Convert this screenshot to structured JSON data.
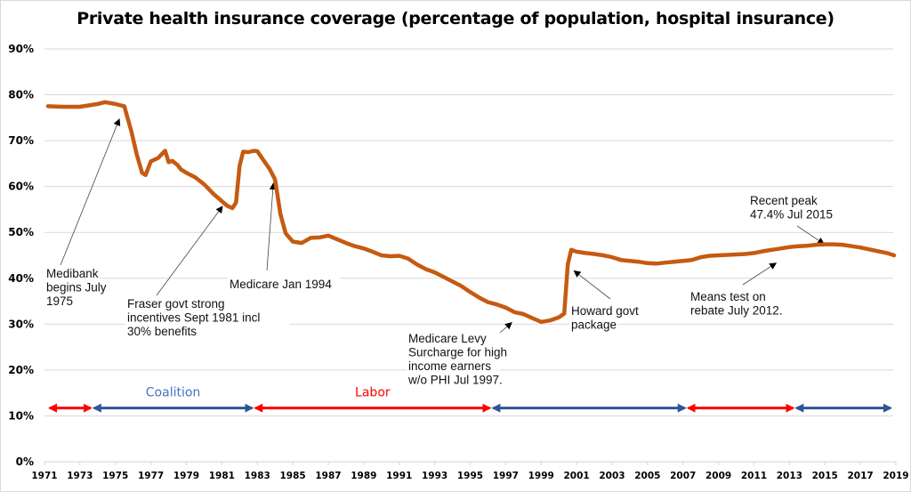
{
  "chart_data": {
    "type": "line",
    "title": "Private health insurance coverage (percentage of population, hospital insurance)",
    "xlabel": "",
    "ylabel": "",
    "xlim": [
      1971,
      2019
    ],
    "ylim": [
      0,
      90
    ],
    "grid": true,
    "legend": "none",
    "x_ticks": [
      "1971",
      "1973",
      "1975",
      "1977",
      "1979",
      "1981",
      "1983",
      "1985",
      "1987",
      "1989",
      "1991",
      "1993",
      "1995",
      "1997",
      "1999",
      "2001",
      "2003",
      "2005",
      "2007",
      "2009",
      "2011",
      "2013",
      "2015",
      "2017",
      "2019"
    ],
    "y_ticks": [
      "0%",
      "10%",
      "20%",
      "30%",
      "40%",
      "50%",
      "60%",
      "70%",
      "80%",
      "90%"
    ],
    "line_color": "#C55A11",
    "series": [
      {
        "name": "Private health insurance coverage (%)",
        "x": [
          1971.2,
          1972.0,
          1973.0,
          1974.0,
          1974.4,
          1975.0,
          1975.5,
          1975.9,
          1976.2,
          1976.5,
          1976.7,
          1977.0,
          1977.4,
          1977.8,
          1978.0,
          1978.2,
          1978.5,
          1978.7,
          1979.0,
          1979.5,
          1980.0,
          1980.5,
          1981.0,
          1981.3,
          1981.6,
          1981.8,
          1982.0,
          1982.2,
          1982.5,
          1982.8,
          1983.0,
          1983.3,
          1983.7,
          1984.0,
          1984.3,
          1984.6,
          1985.0,
          1985.5,
          1986.0,
          1986.5,
          1987.0,
          1987.5,
          1988.0,
          1988.5,
          1989.0,
          1989.5,
          1990.0,
          1990.5,
          1991.0,
          1991.5,
          1992.0,
          1992.5,
          1993.0,
          1993.5,
          1994.0,
          1994.5,
          1995.0,
          1995.5,
          1996.0,
          1996.5,
          1997.0,
          1997.5,
          1998.0,
          1998.5,
          1999.0,
          1999.5,
          2000.0,
          2000.3,
          2000.5,
          2000.7,
          2001.0,
          2001.5,
          2002.0,
          2002.5,
          2003.0,
          2003.5,
          2004.0,
          2004.5,
          2005.0,
          2005.5,
          2006.0,
          2006.5,
          2007.0,
          2007.5,
          2008.0,
          2008.5,
          2009.0,
          2009.5,
          2010.0,
          2010.5,
          2011.0,
          2011.5,
          2012.0,
          2012.5,
          2013.0,
          2013.5,
          2014.0,
          2014.5,
          2015.0,
          2015.5,
          2016.0,
          2016.5,
          2017.0,
          2017.5,
          2018.0,
          2018.5,
          2018.9
        ],
        "values": [
          77.5,
          77.4,
          77.4,
          78.0,
          78.4,
          78.0,
          77.5,
          72.0,
          67.0,
          63.0,
          62.5,
          65.5,
          66.2,
          67.8,
          65.3,
          65.6,
          64.7,
          63.7,
          63.0,
          62.0,
          60.5,
          58.5,
          56.8,
          55.8,
          55.3,
          56.5,
          64.5,
          67.6,
          67.5,
          67.8,
          67.7,
          66.0,
          63.8,
          61.5,
          54.0,
          49.8,
          48.0,
          47.7,
          48.8,
          48.9,
          49.3,
          48.5,
          47.7,
          47.0,
          46.5,
          45.8,
          45.0,
          44.8,
          44.9,
          44.3,
          43.0,
          42.0,
          41.3,
          40.3,
          39.3,
          38.3,
          37.0,
          35.8,
          34.8,
          34.3,
          33.6,
          32.6,
          32.2,
          31.3,
          30.5,
          30.8,
          31.5,
          32.3,
          43.0,
          46.2,
          45.8,
          45.5,
          45.3,
          45.0,
          44.6,
          44.0,
          43.8,
          43.6,
          43.3,
          43.2,
          43.4,
          43.6,
          43.8,
          44.0,
          44.6,
          44.9,
          45.0,
          45.1,
          45.2,
          45.3,
          45.5,
          45.9,
          46.2,
          46.5,
          46.8,
          47.0,
          47.1,
          47.3,
          47.4,
          47.4,
          47.3,
          47.0,
          46.7,
          46.3,
          45.9,
          45.5,
          45.0
        ]
      }
    ],
    "annotations": [
      {
        "text_lines": [
          "Medibank",
          "begins July",
          "1975"
        ],
        "arrow_to": [
          1975.2,
          74.5
        ]
      },
      {
        "text_lines": [
          "Fraser govt strong",
          "incentives Sept 1981 incl",
          "30% benefits"
        ],
        "arrow_to": [
          1981.0,
          55.5
        ]
      },
      {
        "text_lines": [
          "Medicare Jan 1994"
        ],
        "arrow_to": [
          1983.9,
          60.5
        ]
      },
      {
        "text_lines": [
          "Medicare Levy",
          "Surcharge for high",
          "income earners",
          "w/o PHI Jul 1997."
        ],
        "arrow_to": [
          1997.3,
          30.2
        ]
      },
      {
        "text_lines": [
          "Howard govt",
          "package"
        ],
        "arrow_to": [
          2000.9,
          41.5
        ]
      },
      {
        "text_lines": [
          "Means test on",
          "rebate July 2012."
        ],
        "arrow_to": [
          2012.2,
          43.2
        ]
      },
      {
        "text_lines": [
          "Recent peak",
          "47.4% Jul 2015"
        ],
        "arrow_to": [
          2014.9,
          47.6
        ]
      }
    ],
    "government_periods": [
      {
        "party": "Labor",
        "start": 1971.2,
        "end": 1973.7,
        "color": "#FF0000",
        "label": ""
      },
      {
        "party": "Coalition",
        "start": 1973.7,
        "end": 1982.8,
        "color": "#2F5597",
        "label": "Coalition"
      },
      {
        "party": "Labor",
        "start": 1982.8,
        "end": 1996.2,
        "color": "#FF0000",
        "label": "Labor"
      },
      {
        "party": "Coalition",
        "start": 1996.2,
        "end": 2007.2,
        "color": "#2F5597",
        "label": ""
      },
      {
        "party": "Labor",
        "start": 2007.2,
        "end": 2013.3,
        "color": "#FF0000",
        "label": ""
      },
      {
        "party": "Coalition",
        "start": 2013.3,
        "end": 2018.8,
        "color": "#2F5597",
        "label": ""
      }
    ],
    "government_period_level": 11.7
  }
}
